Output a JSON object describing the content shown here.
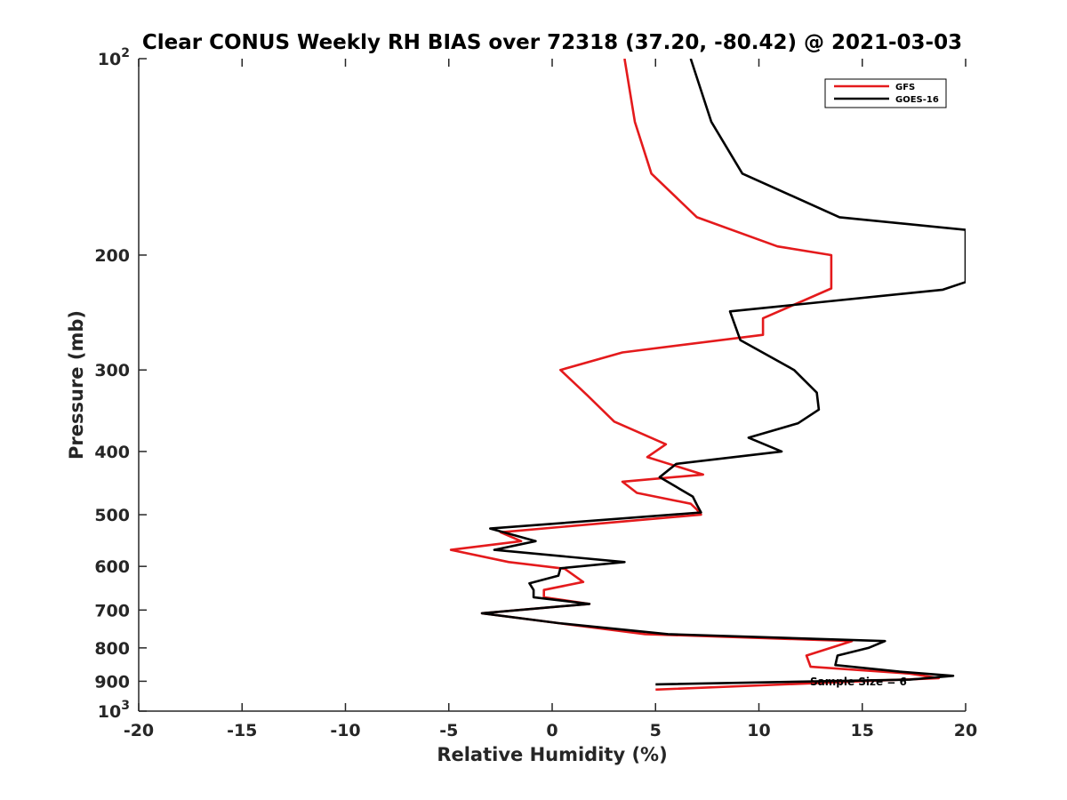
{
  "chart_data": {
    "type": "line",
    "title": "Clear CONUS Weekly RH BIAS over 72318 (37.20, -80.42) @ 2021-03-03",
    "xlabel": "Relative Humidity (%)",
    "ylabel": "Pressure (mb)",
    "xlim": [
      -20,
      20
    ],
    "ylim": [
      100,
      1000
    ],
    "y_scale": "log",
    "y_reversed": true,
    "grid": false,
    "legend_position": "top-right",
    "x_ticks": [
      "-20",
      "-15",
      "-10",
      "-5",
      "0",
      "5",
      "10",
      "15",
      "20"
    ],
    "y_ticks": [
      {
        "value": 100,
        "label": "10",
        "sup": "2"
      },
      {
        "value": 200,
        "label": "200",
        "sup": ""
      },
      {
        "value": 300,
        "label": "300",
        "sup": ""
      },
      {
        "value": 400,
        "label": "400",
        "sup": ""
      },
      {
        "value": 500,
        "label": "500",
        "sup": ""
      },
      {
        "value": 600,
        "label": "600",
        "sup": ""
      },
      {
        "value": 700,
        "label": "700",
        "sup": ""
      },
      {
        "value": 800,
        "label": "800",
        "sup": ""
      },
      {
        "value": 900,
        "label": "900",
        "sup": ""
      },
      {
        "value": 1000,
        "label": "10",
        "sup": "3"
      }
    ],
    "annotation": "Sample Size = 6",
    "series": [
      {
        "name": "GFS",
        "color": "#e41a1c",
        "points": [
          [
            3.5,
            100
          ],
          [
            4.0,
            125
          ],
          [
            4.8,
            150
          ],
          [
            7.0,
            175
          ],
          [
            10.9,
            194
          ],
          [
            13.5,
            200
          ],
          [
            13.5,
            225
          ],
          [
            10.2,
            250
          ],
          [
            10.2,
            265
          ],
          [
            3.4,
            282
          ],
          [
            0.4,
            300
          ],
          [
            1.7,
            328
          ],
          [
            3.0,
            360
          ],
          [
            5.5,
            390
          ],
          [
            4.6,
            408
          ],
          [
            7.3,
            434
          ],
          [
            3.4,
            445
          ],
          [
            4.1,
            463
          ],
          [
            6.7,
            481
          ],
          [
            7.0,
            491
          ],
          [
            7.2,
            500
          ],
          [
            -2.5,
            532
          ],
          [
            -1.5,
            549
          ],
          [
            -4.9,
            566
          ],
          [
            -2.1,
            591
          ],
          [
            0.6,
            605
          ],
          [
            1.5,
            634
          ],
          [
            -0.4,
            652
          ],
          [
            -0.4,
            669
          ],
          [
            1.8,
            685
          ],
          [
            -3.4,
            708
          ],
          [
            0.3,
            733
          ],
          [
            4.5,
            762
          ],
          [
            14.5,
            781
          ],
          [
            12.3,
            822
          ],
          [
            12.5,
            855
          ],
          [
            17.3,
            876
          ],
          [
            18.7,
            890
          ],
          [
            5.0,
            927
          ]
        ]
      },
      {
        "name": "GOES-16",
        "color": "#000000",
        "points": [
          [
            6.7,
            100
          ],
          [
            7.7,
            125
          ],
          [
            9.2,
            150
          ],
          [
            13.9,
            175
          ],
          [
            20.0,
            183
          ],
          [
            20.0,
            220
          ],
          [
            18.9,
            226
          ],
          [
            8.6,
            244
          ],
          [
            9.1,
            270
          ],
          [
            11.7,
            300
          ],
          [
            12.8,
            325
          ],
          [
            12.9,
            345
          ],
          [
            11.9,
            362
          ],
          [
            9.5,
            381
          ],
          [
            11.1,
            400
          ],
          [
            6.0,
            418
          ],
          [
            5.2,
            438
          ],
          [
            6.8,
            469
          ],
          [
            7.0,
            483
          ],
          [
            7.2,
            496
          ],
          [
            -3.0,
            525
          ],
          [
            -0.8,
            549
          ],
          [
            -2.8,
            566
          ],
          [
            3.5,
            591
          ],
          [
            0.4,
            604
          ],
          [
            0.3,
            620
          ],
          [
            -1.1,
            637
          ],
          [
            -0.9,
            652
          ],
          [
            -0.9,
            669
          ],
          [
            1.8,
            685
          ],
          [
            -3.4,
            708
          ],
          [
            0.3,
            733
          ],
          [
            5.6,
            762
          ],
          [
            16.1,
            781
          ],
          [
            15.3,
            800
          ],
          [
            13.8,
            822
          ],
          [
            13.7,
            850
          ],
          [
            16.8,
            870
          ],
          [
            19.4,
            883
          ],
          [
            17.3,
            895
          ],
          [
            5.0,
            910
          ]
        ]
      }
    ]
  }
}
